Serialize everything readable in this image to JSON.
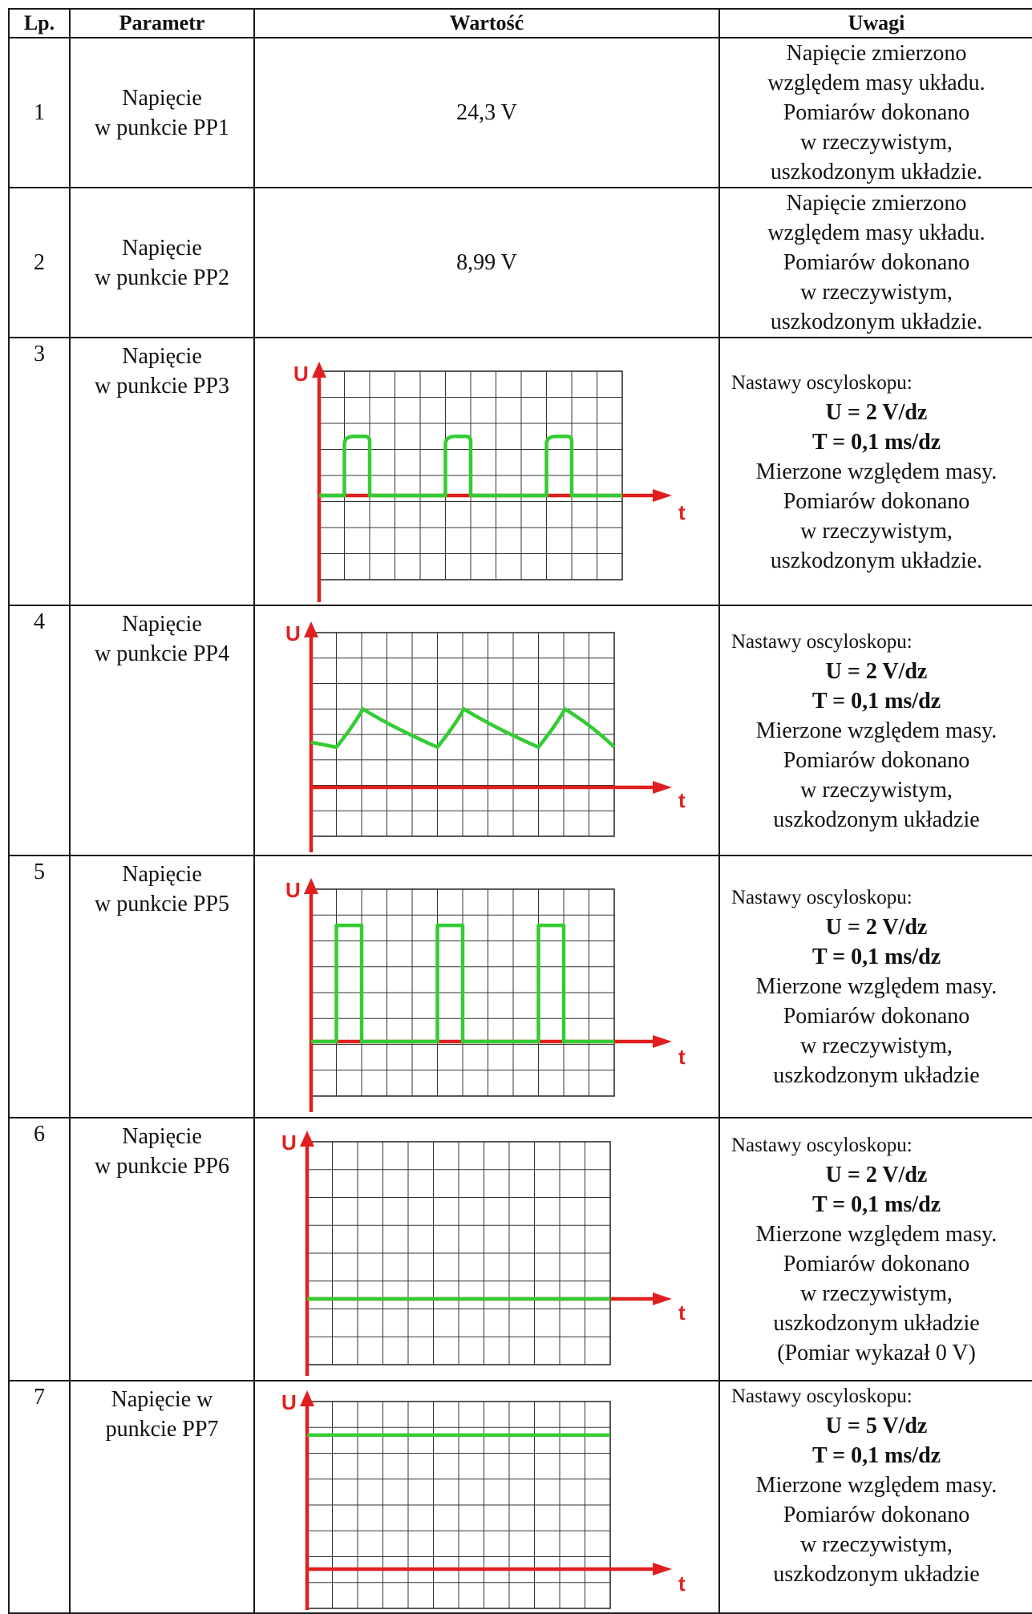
{
  "headers": {
    "lp": "Lp.",
    "param": "Parametr",
    "value": "Wartość",
    "notes": "Uwagi"
  },
  "rows": [
    {
      "lp": "1",
      "param": [
        "Napięcie",
        "w punkcie PP1"
      ],
      "value": "24,3 V",
      "notes": [
        "Napięcie zmierzono",
        "względem masy układu.",
        "Pomiarów dokonano",
        "w rzeczywistym,",
        "uszkodzonym układzie."
      ]
    },
    {
      "lp": "2",
      "param": [
        "Napięcie",
        "w punkcie PP2"
      ],
      "value": "8,99 V",
      "notes": [
        "Napięcie zmierzono",
        "względem masy układu.",
        "Pomiarów dokonano",
        "w rzeczywistym,",
        "uszkodzonym układzie."
      ]
    },
    {
      "lp": "3",
      "param": [
        "Napięcie",
        "w punkcie PP3"
      ],
      "scope": {
        "u_label": "U",
        "t_label": "t",
        "waveform": "pulses-rounded-top"
      },
      "notes": {
        "head": "Nastawy oscyloskopu:",
        "u": "U = 2 V/dz",
        "t": "T = 0,1 ms/dz",
        "lines": [
          "Mierzone względem masy.",
          "Pomiarów dokonano",
          "w rzeczywistym,",
          "uszkodzonym układzie."
        ]
      }
    },
    {
      "lp": "4",
      "param": [
        "Napięcie",
        "w punkcie PP4"
      ],
      "scope": {
        "u_label": "U",
        "t_label": "t",
        "waveform": "sawtooth-decay"
      },
      "notes": {
        "head": "Nastawy oscyloskopu:",
        "u": "U = 2 V/dz",
        "t": "T = 0,1 ms/dz",
        "lines": [
          "Mierzone względem masy.",
          "Pomiarów dokonano",
          "w rzeczywistym,",
          "uszkodzonym układzie"
        ]
      }
    },
    {
      "lp": "5",
      "param": [
        "Napięcie",
        "w punkcie PP5"
      ],
      "scope": {
        "u_label": "U",
        "t_label": "t",
        "waveform": "square-pulses"
      },
      "notes": {
        "head": "Nastawy oscyloskopu:",
        "u": "U = 2 V/dz",
        "t": "T = 0,1 ms/dz",
        "lines": [
          "Mierzone względem masy.",
          "Pomiarów dokonano",
          "w rzeczywistym,",
          "uszkodzonym układzie"
        ]
      }
    },
    {
      "lp": "6",
      "param": [
        "Napięcie",
        "w punkcie PP6"
      ],
      "scope": {
        "u_label": "U",
        "t_label": "t",
        "waveform": "flat-zero"
      },
      "notes": {
        "head": "Nastawy oscyloskopu:",
        "u": "U = 2 V/dz",
        "t": "T = 0,1 ms/dz",
        "lines": [
          "Mierzone względem masy.",
          "Pomiarów dokonano",
          "w rzeczywistym,",
          "uszkodzonym układzie",
          "(Pomiar  wykazał 0 V)"
        ]
      }
    },
    {
      "lp": "7",
      "param": [
        "Napięcie w",
        "punkcie PP7"
      ],
      "scope": {
        "u_label": "U",
        "t_label": "t",
        "waveform": "flat-high"
      },
      "notes": {
        "head": "Nastawy oscyloskopu:",
        "u": "U = 5 V/dz",
        "t": "T = 0,1 ms/dz",
        "lines": [
          "Mierzone względem masy.",
          "Pomiarów dokonano",
          "w rzeczywistym,",
          "uszkodzonym układzie"
        ]
      }
    }
  ]
}
